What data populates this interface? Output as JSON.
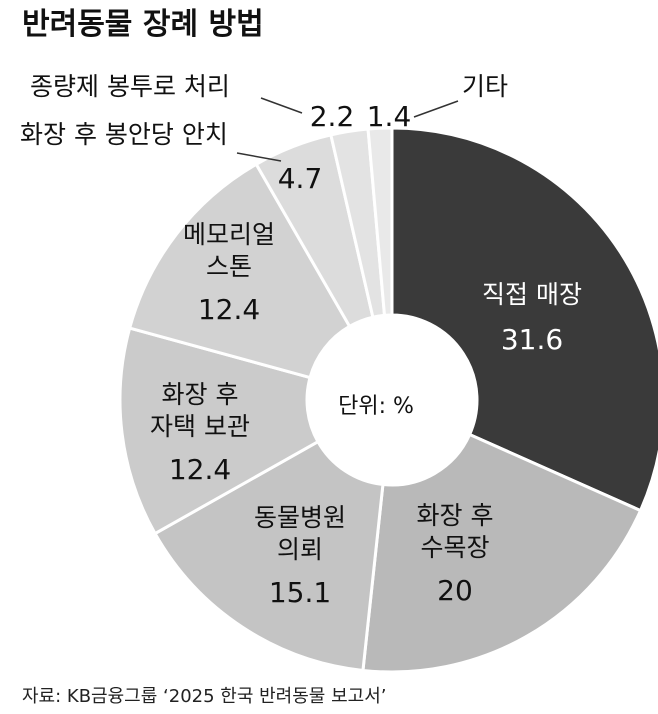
{
  "chart_data": {
    "type": "pie",
    "title": "반려동물 장례 방법",
    "center_label": "단위: %",
    "source": "자료: KB금융그룹 ‘2025 한국 반려동물 보고서’",
    "slices": [
      {
        "label": [
          "직접 매장"
        ],
        "value": 31.6,
        "value_text": "31.6",
        "color": "#3a3a3a"
      },
      {
        "label": [
          "화장 후",
          "수목장"
        ],
        "value": 20,
        "value_text": "20",
        "color": "#b9b9b9"
      },
      {
        "label": [
          "동물병원",
          "의뢰"
        ],
        "value": 15.1,
        "value_text": "15.1",
        "color": "#c4c4c4"
      },
      {
        "label": [
          "화장 후",
          "자택 보관"
        ],
        "value": 12.4,
        "value_text": "12.4",
        "color": "#cbcbcb"
      },
      {
        "label": [
          "메모리얼",
          "스톤"
        ],
        "value": 12.4,
        "value_text": "12.4",
        "color": "#d2d2d2"
      },
      {
        "label": [
          "화장 후 봉안당 안치"
        ],
        "value": 4.7,
        "value_text": "4.7",
        "color": "#dcdcdc"
      },
      {
        "label": [
          "종량제 봉투로 처리"
        ],
        "value": 2.2,
        "value_text": "2.2",
        "color": "#e3e3e3"
      },
      {
        "label": [
          "기타"
        ],
        "value": 1.4,
        "value_text": "1.4",
        "color": "#e9e9e9"
      }
    ]
  }
}
